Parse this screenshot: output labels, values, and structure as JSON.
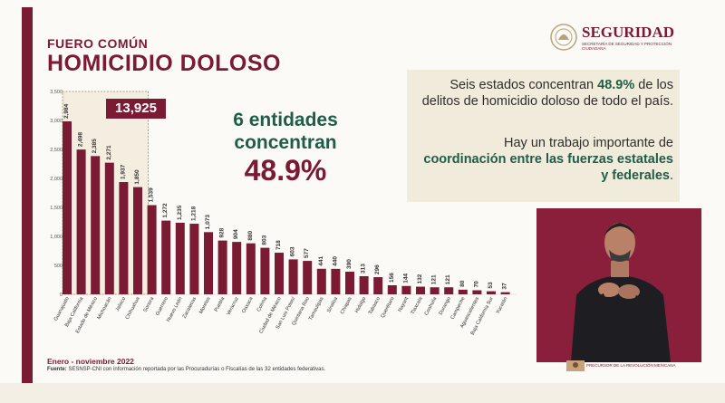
{
  "header": {
    "kicker": "FUERO COMÚN",
    "title": "HOMICIDIO DOLOSO"
  },
  "logo": {
    "name": "SEGURIDAD",
    "subtitle": "SECRETARÍA DE SEGURIDAD Y PROTECCIÓN CIUDADANA"
  },
  "highlight": {
    "total": "13,925",
    "label_line1": "6 entidades",
    "label_line2": "concentran",
    "percent": "48.9%"
  },
  "note": {
    "p1_before": "Seis estados concentran ",
    "p1_bold": "48.9%",
    "p1_after": " de los delitos de homicidio doloso de todo el país.",
    "p2_before": "Hay un trabajo importante de ",
    "p2_bold": "coordinación entre las fuerzas estatales y federales",
    "p2_after": "."
  },
  "footer": {
    "period": "Enero - noviembre 2022",
    "source_label": "Fuente:",
    "source_text": " SESNSP-CNI con información reportada por las Procuradurías o Fiscalías de las 32 entidades federativas."
  },
  "bottom_logo": {
    "text": "PRECURSOR DE LA REVOLUCIÓN MEXICANA"
  },
  "colors": {
    "bar": "#7a1a33",
    "accent_green": "#1f5d48",
    "panel": "#f1ebdc"
  },
  "chart_data": {
    "type": "bar",
    "title": "",
    "xlabel": "",
    "ylabel": "",
    "ylim": [
      0,
      3500
    ],
    "yticks": [
      "3,500",
      "3,000",
      "2,500",
      "2,000",
      "1,500",
      "1,000",
      "500",
      "0"
    ],
    "ytick_values": [
      3500,
      3000,
      2500,
      2000,
      1500,
      1000,
      500,
      0
    ],
    "categories": [
      "Guanajuato",
      "Baja California",
      "Estado de México",
      "Michoacán",
      "Jalisco",
      "Chihuahua",
      "Sonora",
      "Guerrero",
      "Nuevo León",
      "Zacatecas",
      "Morelos",
      "Puebla",
      "Veracruz",
      "Oaxaca",
      "Colima",
      "Ciudad de México",
      "San Luis Potosí",
      "Quintana Roo",
      "Tamaulipas",
      "Sinaloa",
      "Chiapas",
      "Hidalgo",
      "Tabasco",
      "Querétaro",
      "Nayarit",
      "Tlaxcala",
      "Coahuila",
      "Durango",
      "Campeche",
      "Aguascalientes",
      "Baja California Sur",
      "Yucatán"
    ],
    "values": [
      2984,
      2498,
      2385,
      2271,
      1937,
      1850,
      1539,
      1272,
      1235,
      1218,
      1073,
      928,
      904,
      880,
      803,
      718,
      603,
      577,
      441,
      440,
      390,
      313,
      296,
      156,
      144,
      132,
      121,
      121,
      80,
      70,
      53,
      37
    ],
    "value_labels": [
      "2,984",
      "2,498",
      "2,385",
      "2,271",
      "1,937",
      "1,850",
      "1,539",
      "1,272",
      "1,235",
      "1,218",
      "1,073",
      "928",
      "904",
      "880",
      "803",
      "718",
      "603",
      "577",
      "441",
      "440",
      "390",
      "313",
      "296",
      "156",
      "144",
      "132",
      "121",
      "121",
      "80",
      "70",
      "53",
      "37"
    ],
    "highlighted_count": 6,
    "grid": false,
    "legend": "none"
  }
}
